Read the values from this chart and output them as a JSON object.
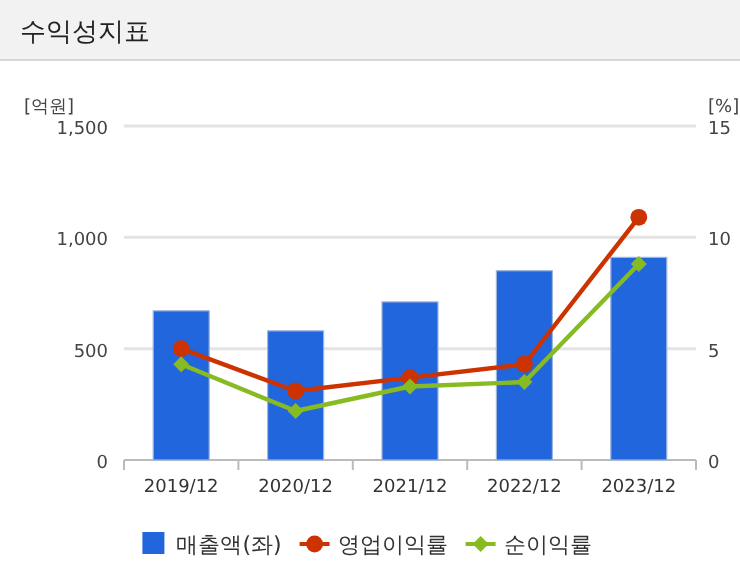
{
  "chart_data": {
    "type": "bar",
    "title": "수익성지표",
    "ylabel": "[억원]",
    "y2label": "[%]",
    "categories": [
      "2019/12",
      "2020/12",
      "2021/12",
      "2022/12",
      "2023/12"
    ],
    "series": [
      {
        "name": "매출액(좌)",
        "color": "#2266dd",
        "values": [
          670,
          580,
          710,
          850,
          910
        ]
      },
      {
        "name": "영업이익률",
        "type": "line",
        "axis": "y2",
        "marker": "circle",
        "color": "#cc3300",
        "values": [
          5.0,
          3.1,
          3.7,
          4.3,
          10.9
        ]
      },
      {
        "name": "순이익률",
        "type": "line",
        "axis": "y2",
        "marker": "diamond",
        "color": "#88bb22",
        "values": [
          4.3,
          2.2,
          3.3,
          3.5,
          8.8
        ]
      }
    ],
    "ylim": [
      0,
      1500
    ],
    "yticks": [
      0,
      500,
      {
        "value": 1000,
        "label": "1,000"
      },
      {
        "value": 1500,
        "label": "1,500"
      }
    ],
    "y2lim": [
      0,
      15
    ],
    "y2ticks": [
      0,
      5,
      10,
      15
    ],
    "grid": "y",
    "legend": "bottom"
  }
}
